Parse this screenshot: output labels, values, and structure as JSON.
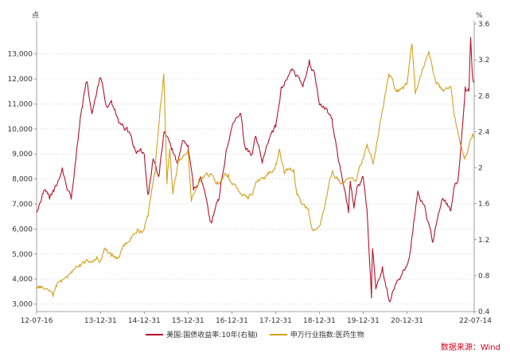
{
  "chart_data": {
    "type": "line",
    "left_axis": {
      "unit": "点",
      "ylim": [
        2700,
        14200
      ],
      "ticks": [
        3000,
        4000,
        5000,
        6000,
        7000,
        8000,
        9000,
        10000,
        11000,
        12000,
        13000
      ],
      "tick_labels": [
        "3,000",
        "4,000",
        "5,000",
        "6,000",
        "7,000",
        "8,000",
        "9,000",
        "10,000",
        "11,000",
        "12,000",
        "13,000"
      ]
    },
    "right_axis": {
      "unit": "%",
      "ylim": [
        0.4,
        3.6
      ],
      "ticks": [
        0.4,
        0.8,
        1.2,
        1.6,
        2.0,
        2.4,
        2.8,
        3.2,
        3.6
      ],
      "tick_labels": [
        "0.4",
        "0.8",
        "1.2",
        "1.6",
        "2",
        "2.4",
        "2.8",
        "3.2",
        "3.6"
      ]
    },
    "x_axis": {
      "start": "2012-07-16",
      "end": "2022-07-14",
      "tick_labels": [
        {
          "date": "2012-07-16",
          "label": "12-07-16"
        },
        {
          "date": "2013-12-31",
          "label": "13-12-31"
        },
        {
          "date": "2014-12-31",
          "label": "14-12-31"
        },
        {
          "date": "2015-12-31",
          "label": "15-12-31"
        },
        {
          "date": "2016-12-31",
          "label": "16-12-31"
        },
        {
          "date": "2017-12-31",
          "label": "17-12-31"
        },
        {
          "date": "2018-12-31",
          "label": "18-12-31"
        },
        {
          "date": "2019-12-31",
          "label": "19-12-31"
        },
        {
          "date": "2020-12-31",
          "label": "20-12-31"
        },
        {
          "date": "2022-07-14",
          "label": "22-07-14"
        }
      ]
    },
    "grid": "horizontal-dashed",
    "legend_position": "bottom",
    "series": [
      {
        "name": "美国:国债收益率:10年(右轴)",
        "axis": "right",
        "color": "#b5122b",
        "points": [
          [
            "2012-07-16",
            1.5
          ],
          [
            "2012-09-15",
            1.75
          ],
          [
            "2012-11-01",
            1.65
          ],
          [
            "2012-12-31",
            1.8
          ],
          [
            "2013-02-15",
            2.0
          ],
          [
            "2013-04-01",
            1.75
          ],
          [
            "2013-05-01",
            1.65
          ],
          [
            "2013-06-15",
            2.2
          ],
          [
            "2013-07-15",
            2.55
          ],
          [
            "2013-09-05",
            2.95
          ],
          [
            "2013-10-20",
            2.6
          ],
          [
            "2013-12-31",
            3.0
          ],
          [
            "2014-02-15",
            2.7
          ],
          [
            "2014-04-01",
            2.75
          ],
          [
            "2014-06-01",
            2.5
          ],
          [
            "2014-08-15",
            2.4
          ],
          [
            "2014-10-15",
            2.2
          ],
          [
            "2014-12-31",
            2.15
          ],
          [
            "2015-01-31",
            1.7
          ],
          [
            "2015-03-15",
            2.1
          ],
          [
            "2015-04-30",
            1.9
          ],
          [
            "2015-06-15",
            2.4
          ],
          [
            "2015-08-15",
            2.2
          ],
          [
            "2015-10-01",
            2.05
          ],
          [
            "2015-11-15",
            2.3
          ],
          [
            "2015-12-31",
            2.25
          ],
          [
            "2016-02-15",
            1.75
          ],
          [
            "2016-04-15",
            1.9
          ],
          [
            "2016-07-08",
            1.4
          ],
          [
            "2016-09-15",
            1.65
          ],
          [
            "2016-11-15",
            2.2
          ],
          [
            "2016-12-31",
            2.45
          ],
          [
            "2017-03-15",
            2.6
          ],
          [
            "2017-04-15",
            2.25
          ],
          [
            "2017-06-15",
            2.15
          ],
          [
            "2017-07-15",
            2.35
          ],
          [
            "2017-09-10",
            2.05
          ],
          [
            "2017-11-15",
            2.35
          ],
          [
            "2017-12-31",
            2.45
          ],
          [
            "2018-02-15",
            2.9
          ],
          [
            "2018-05-17",
            3.1
          ],
          [
            "2018-08-15",
            2.9
          ],
          [
            "2018-10-08",
            3.2
          ],
          [
            "2018-11-20",
            3.05
          ],
          [
            "2018-12-31",
            2.7
          ],
          [
            "2019-02-15",
            2.65
          ],
          [
            "2019-04-15",
            2.55
          ],
          [
            "2019-06-15",
            2.05
          ],
          [
            "2019-08-31",
            1.5
          ],
          [
            "2019-09-15",
            1.85
          ],
          [
            "2019-10-15",
            1.55
          ],
          [
            "2019-11-15",
            1.8
          ],
          [
            "2019-12-31",
            1.9
          ],
          [
            "2020-01-31",
            1.55
          ],
          [
            "2020-03-09",
            0.55
          ],
          [
            "2020-03-18",
            1.1
          ],
          [
            "2020-04-15",
            0.65
          ],
          [
            "2020-06-08",
            0.9
          ],
          [
            "2020-08-04",
            0.52
          ],
          [
            "2020-10-15",
            0.75
          ],
          [
            "2020-12-31",
            0.92
          ],
          [
            "2021-01-31",
            1.1
          ],
          [
            "2021-03-31",
            1.74
          ],
          [
            "2021-06-01",
            1.55
          ],
          [
            "2021-08-03",
            1.17
          ],
          [
            "2021-10-20",
            1.65
          ],
          [
            "2021-12-31",
            1.52
          ],
          [
            "2022-01-31",
            1.8
          ],
          [
            "2022-02-28",
            1.85
          ],
          [
            "2022-03-31",
            2.35
          ],
          [
            "2022-04-30",
            2.9
          ],
          [
            "2022-05-31",
            2.85
          ],
          [
            "2022-06-14",
            3.45
          ],
          [
            "2022-06-30",
            3.0
          ],
          [
            "2022-07-14",
            2.95
          ]
        ]
      },
      {
        "name": "申万行业指数:医药生物",
        "axis": "left",
        "color": "#d4a01e",
        "points": [
          [
            "2012-07-16",
            3600
          ],
          [
            "2012-09-01",
            3700
          ],
          [
            "2012-11-30",
            3300
          ],
          [
            "2012-12-31",
            3700
          ],
          [
            "2013-03-01",
            4000
          ],
          [
            "2013-05-31",
            4400
          ],
          [
            "2013-07-15",
            4500
          ],
          [
            "2013-09-30",
            4700
          ],
          [
            "2013-11-30",
            4900
          ],
          [
            "2013-12-31",
            4700
          ],
          [
            "2014-01-31",
            5200
          ],
          [
            "2014-03-31",
            4900
          ],
          [
            "2014-05-15",
            4800
          ],
          [
            "2014-06-30",
            5200
          ],
          [
            "2014-09-01",
            5500
          ],
          [
            "2014-10-31",
            5900
          ],
          [
            "2014-12-31",
            6000
          ],
          [
            "2015-01-31",
            6500
          ],
          [
            "2015-03-31",
            8200
          ],
          [
            "2015-05-15",
            11000
          ],
          [
            "2015-06-12",
            12200
          ],
          [
            "2015-07-08",
            7800
          ],
          [
            "2015-08-01",
            9200
          ],
          [
            "2015-08-26",
            7400
          ],
          [
            "2015-10-15",
            8800
          ],
          [
            "2015-12-31",
            9200
          ],
          [
            "2016-01-28",
            7100
          ],
          [
            "2016-03-31",
            7900
          ],
          [
            "2016-06-30",
            8200
          ],
          [
            "2016-08-31",
            7900
          ],
          [
            "2016-11-30",
            8200
          ],
          [
            "2016-12-31",
            7800
          ],
          [
            "2017-03-01",
            7500
          ],
          [
            "2017-05-15",
            7200
          ],
          [
            "2017-07-31",
            7900
          ],
          [
            "2017-09-30",
            8000
          ],
          [
            "2017-12-31",
            8600
          ],
          [
            "2018-01-31",
            9200
          ],
          [
            "2018-03-15",
            8200
          ],
          [
            "2018-05-31",
            8400
          ],
          [
            "2018-06-20",
            7600
          ],
          [
            "2018-07-31",
            7100
          ],
          [
            "2018-09-30",
            6800
          ],
          [
            "2018-10-31",
            6000
          ],
          [
            "2018-12-31",
            6100
          ],
          [
            "2019-02-28",
            7300
          ],
          [
            "2019-04-15",
            8300
          ],
          [
            "2019-06-30",
            7800
          ],
          [
            "2019-08-31",
            8000
          ],
          [
            "2019-10-31",
            7900
          ],
          [
            "2019-12-31",
            8800
          ],
          [
            "2020-02-03",
            9400
          ],
          [
            "2020-03-23",
            8600
          ],
          [
            "2020-05-31",
            10500
          ],
          [
            "2020-07-31",
            12200
          ],
          [
            "2020-08-31",
            12000
          ],
          [
            "2020-09-30",
            11500
          ],
          [
            "2020-11-30",
            11600
          ],
          [
            "2020-12-31",
            11800
          ],
          [
            "2021-02-10",
            13400
          ],
          [
            "2021-03-10",
            11400
          ],
          [
            "2021-05-31",
            12700
          ],
          [
            "2021-07-02",
            13100
          ],
          [
            "2021-08-31",
            11800
          ],
          [
            "2021-10-31",
            11500
          ],
          [
            "2021-12-31",
            11700
          ],
          [
            "2022-01-31",
            10500
          ],
          [
            "2022-03-15",
            9500
          ],
          [
            "2022-04-27",
            8800
          ],
          [
            "2022-05-31",
            9300
          ],
          [
            "2022-06-30",
            9800
          ],
          [
            "2022-07-14",
            9600
          ]
        ]
      }
    ]
  },
  "legend": {
    "items": [
      "美国:国债收益率:10年(右轴)",
      "申万行业指数:医药生物"
    ]
  },
  "source": "数据来源：Wind",
  "colors": {
    "treasury": "#b5122b",
    "pharma": "#d4a01e",
    "grid": "#dcdcdc",
    "axis": "#888888",
    "source_text": "#d9001b"
  }
}
